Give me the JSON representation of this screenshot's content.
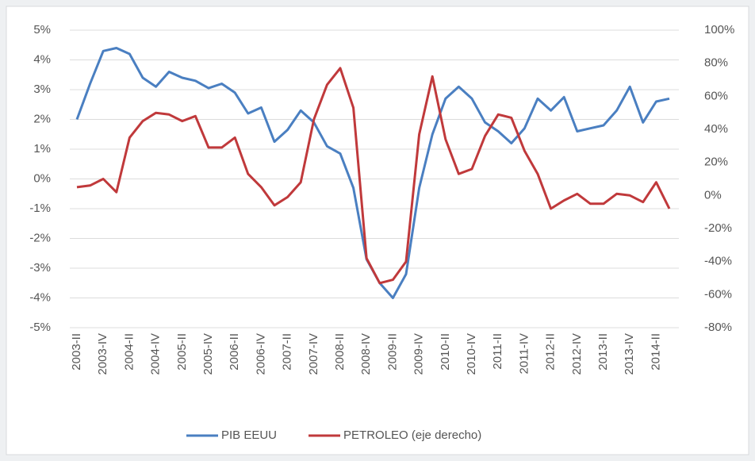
{
  "chart_data": {
    "type": "line",
    "categories": [
      "2003-II",
      null,
      "2003-IV",
      null,
      "2004-II",
      null,
      "2004-IV",
      null,
      "2005-II",
      null,
      "2005-IV",
      null,
      "2006-II",
      null,
      "2006-IV",
      null,
      "2007-II",
      null,
      "2007-IV",
      null,
      "2008-II",
      null,
      "2008-IV",
      null,
      "2009-II",
      null,
      "2009-IV",
      null,
      "2010-II",
      null,
      "2010-IV",
      null,
      "2011-II",
      null,
      "2011-IV",
      null,
      "2012-II",
      null,
      "2012-IV",
      null,
      "2013-II",
      null,
      "2013-IV",
      null,
      "2014-II",
      null
    ],
    "series": [
      {
        "name": "PIB EEUU",
        "color": "#4a7fc1",
        "values": [
          2.0,
          3.2,
          4.3,
          4.4,
          4.2,
          3.4,
          3.1,
          3.6,
          3.4,
          3.3,
          3.05,
          3.2,
          2.9,
          2.2,
          2.4,
          1.25,
          1.65,
          2.3,
          1.9,
          1.1,
          0.85,
          -0.3,
          -2.7,
          -3.5,
          -4.0,
          -3.2,
          -0.3,
          1.5,
          2.7,
          3.1,
          2.7,
          1.9,
          1.6,
          1.2,
          1.7,
          2.7,
          2.3,
          2.75,
          1.6,
          1.7,
          1.8,
          2.3,
          3.1,
          1.9,
          2.6,
          2.7
        ]
      },
      {
        "name": "PETROLEO (eje derecho)",
        "color": "#c0393b",
        "axis": "y2",
        "values": [
          5,
          6,
          10,
          2,
          35,
          45,
          50,
          49,
          45,
          48,
          29,
          29,
          35,
          13,
          5,
          -6,
          -1,
          8,
          46,
          67,
          77,
          53,
          -38,
          -53,
          -51,
          -40,
          37,
          72,
          34,
          13,
          16,
          36,
          49,
          47,
          27,
          13,
          -8,
          -3,
          1,
          -5,
          -5,
          1,
          0,
          -4,
          8,
          -8
        ]
      }
    ],
    "ylim": [
      -5,
      5
    ],
    "yticks": [
      {
        "value": -5,
        "label": "-5%"
      },
      {
        "value": -4,
        "label": "-4%"
      },
      {
        "value": -3,
        "label": "-3%"
      },
      {
        "value": -2,
        "label": "-2%"
      },
      {
        "value": -1,
        "label": "-1%"
      },
      {
        "value": 0,
        "label": "0%"
      },
      {
        "value": 1,
        "label": "1%"
      },
      {
        "value": 2,
        "label": "2%"
      },
      {
        "value": 3,
        "label": "3%"
      },
      {
        "value": 4,
        "label": "4%"
      },
      {
        "value": 5,
        "label": "5%"
      }
    ],
    "y2lim": [
      -80,
      100
    ],
    "y2ticks": [
      {
        "value": -80,
        "label": "-80%"
      },
      {
        "value": -60,
        "label": "-60%"
      },
      {
        "value": -40,
        "label": "-40%"
      },
      {
        "value": -20,
        "label": "-20%"
      },
      {
        "value": 0,
        "label": "0%"
      },
      {
        "value": 20,
        "label": "20%"
      },
      {
        "value": 40,
        "label": "40%"
      },
      {
        "value": 60,
        "label": "60%"
      },
      {
        "value": 80,
        "label": "80%"
      },
      {
        "value": 100,
        "label": "100%"
      }
    ],
    "grid": true,
    "legend": "bottom"
  }
}
